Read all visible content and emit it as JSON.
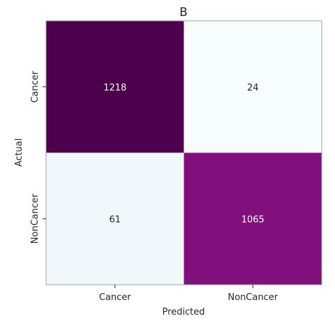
{
  "chart_data": {
    "type": "heatmap",
    "title": "B",
    "xlabel": "Predicted",
    "ylabel": "Actual",
    "x_categories": [
      "Cancer",
      "NonCancer"
    ],
    "y_categories": [
      "Cancer",
      "NonCancer"
    ],
    "values": [
      [
        1218,
        24
      ],
      [
        61,
        1065
      ]
    ],
    "colormap": [
      "#f7fcfd",
      "#e0ecf4",
      "#bfd3e6",
      "#9ebcda",
      "#8c96c6",
      "#8c6bb1",
      "#88419d",
      "#810f7c",
      "#4d004b"
    ],
    "colorbar": false,
    "grid": false,
    "cell_text_colors": {
      "light": "#ffffff",
      "dark": "#262626"
    }
  }
}
